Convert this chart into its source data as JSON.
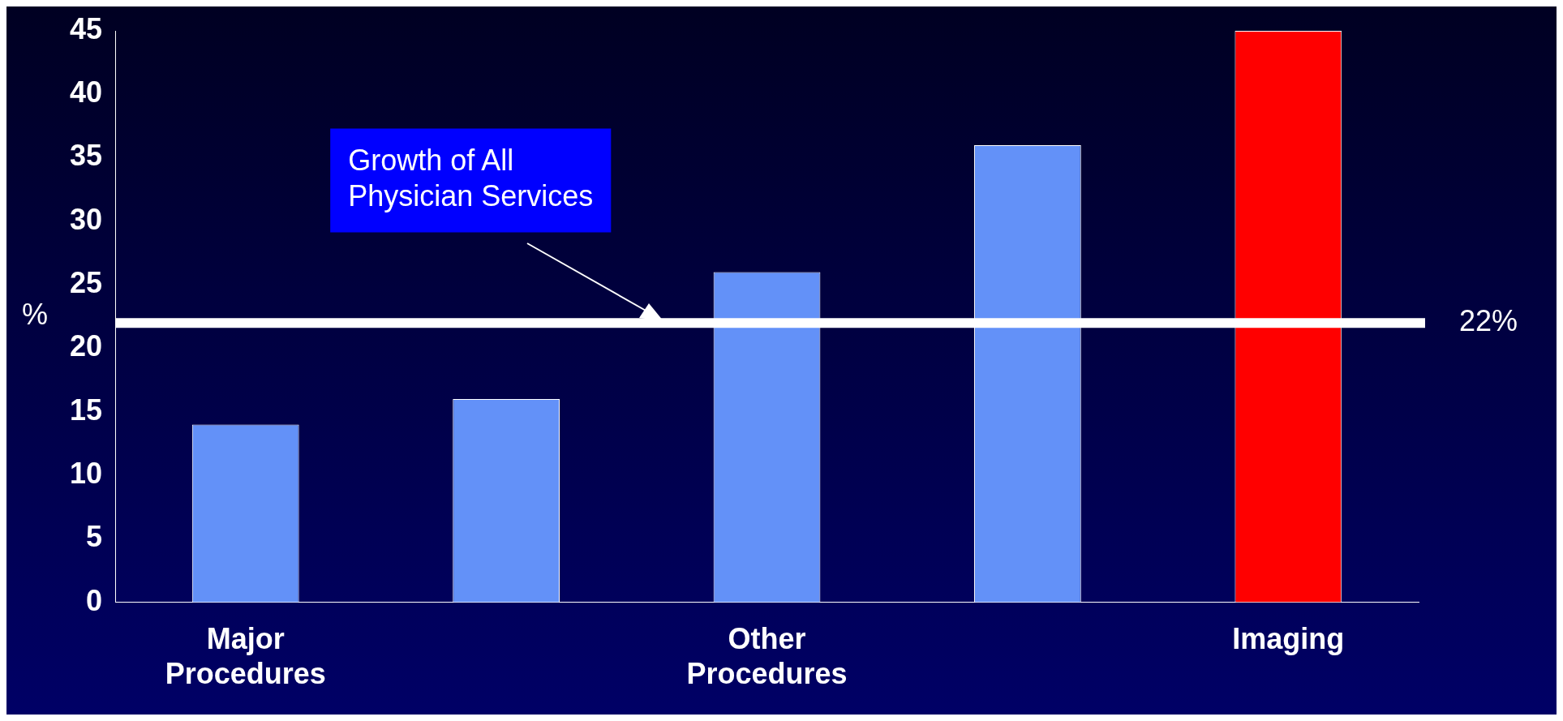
{
  "chart_data": {
    "type": "bar",
    "categories": [
      "Major Procedures",
      null,
      "Other Procedures",
      null,
      "Imaging"
    ],
    "values": [
      14,
      16,
      26,
      36,
      45
    ],
    "colors": [
      "#6391f8",
      "#6391f8",
      "#6391f8",
      "#6391f8",
      "#ff0000"
    ],
    "ylabel": "%",
    "ylim": [
      0,
      45
    ],
    "yticks": [
      0,
      5,
      10,
      15,
      20,
      25,
      30,
      35,
      40,
      45
    ],
    "ref_lines": [
      {
        "axis": "y",
        "value": 22,
        "label": "22%",
        "color": "#ffffff"
      }
    ],
    "annotations": [
      "Growth of All Physician Services"
    ]
  }
}
